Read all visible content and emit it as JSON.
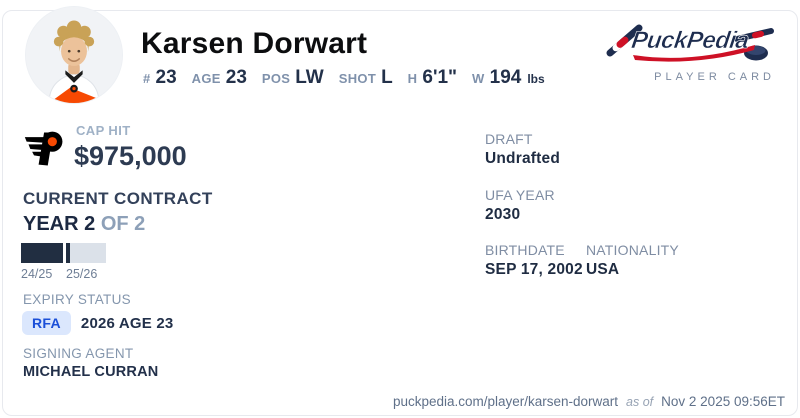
{
  "header": {
    "player_name": "Karsen Dorwart",
    "stats": [
      {
        "label": "#",
        "value": "23"
      },
      {
        "label": "AGE",
        "value": "23"
      },
      {
        "label": "POS",
        "value": "LW"
      },
      {
        "label": "SHOT",
        "value": "L"
      },
      {
        "label": "H",
        "value": "6'1\""
      },
      {
        "label": "W",
        "value": "194",
        "suffix": "lbs"
      }
    ],
    "brand": {
      "logo_text": "PuckPedia",
      "tagline": "PLAYER CARD"
    }
  },
  "cap_hit": {
    "label": "CAP HIT",
    "value": "$975,000"
  },
  "contract": {
    "section_title": "CURRENT CONTRACT",
    "year_current": "YEAR 2",
    "year_total": "OF 2",
    "seasons": [
      {
        "label": "24/25",
        "state": "complete"
      },
      {
        "label": "25/26",
        "state": "current",
        "progress": 0.1
      }
    ],
    "expiry": {
      "label": "EXPIRY STATUS",
      "badge": "RFA",
      "detail": "2026 AGE 23"
    },
    "agent": {
      "label": "SIGNING AGENT",
      "value": "MICHAEL CURRAN"
    }
  },
  "details": {
    "draft": {
      "label": "DRAFT",
      "value": "Undrafted"
    },
    "ufa_year": {
      "label": "UFA YEAR",
      "value": "2030"
    },
    "birthdate": {
      "label": "BIRTHDATE",
      "value": "SEP 17, 2002"
    },
    "nationality": {
      "label": "NATIONALITY",
      "value": "USA"
    }
  },
  "footer": {
    "url": "puckpedia.com/player/karsen-dorwart",
    "as_of_label": "as of",
    "timestamp": "Nov 2 2025 09:56ET"
  },
  "colors": {
    "team_orange": "#f74902",
    "brand_navy": "#1e2d4f",
    "brand_red": "#ce1126",
    "badge_bg": "#dbe7fd",
    "badge_text": "#1b4fd8",
    "bar_dark": "#212e41",
    "bar_light": "#dbe1e9"
  }
}
